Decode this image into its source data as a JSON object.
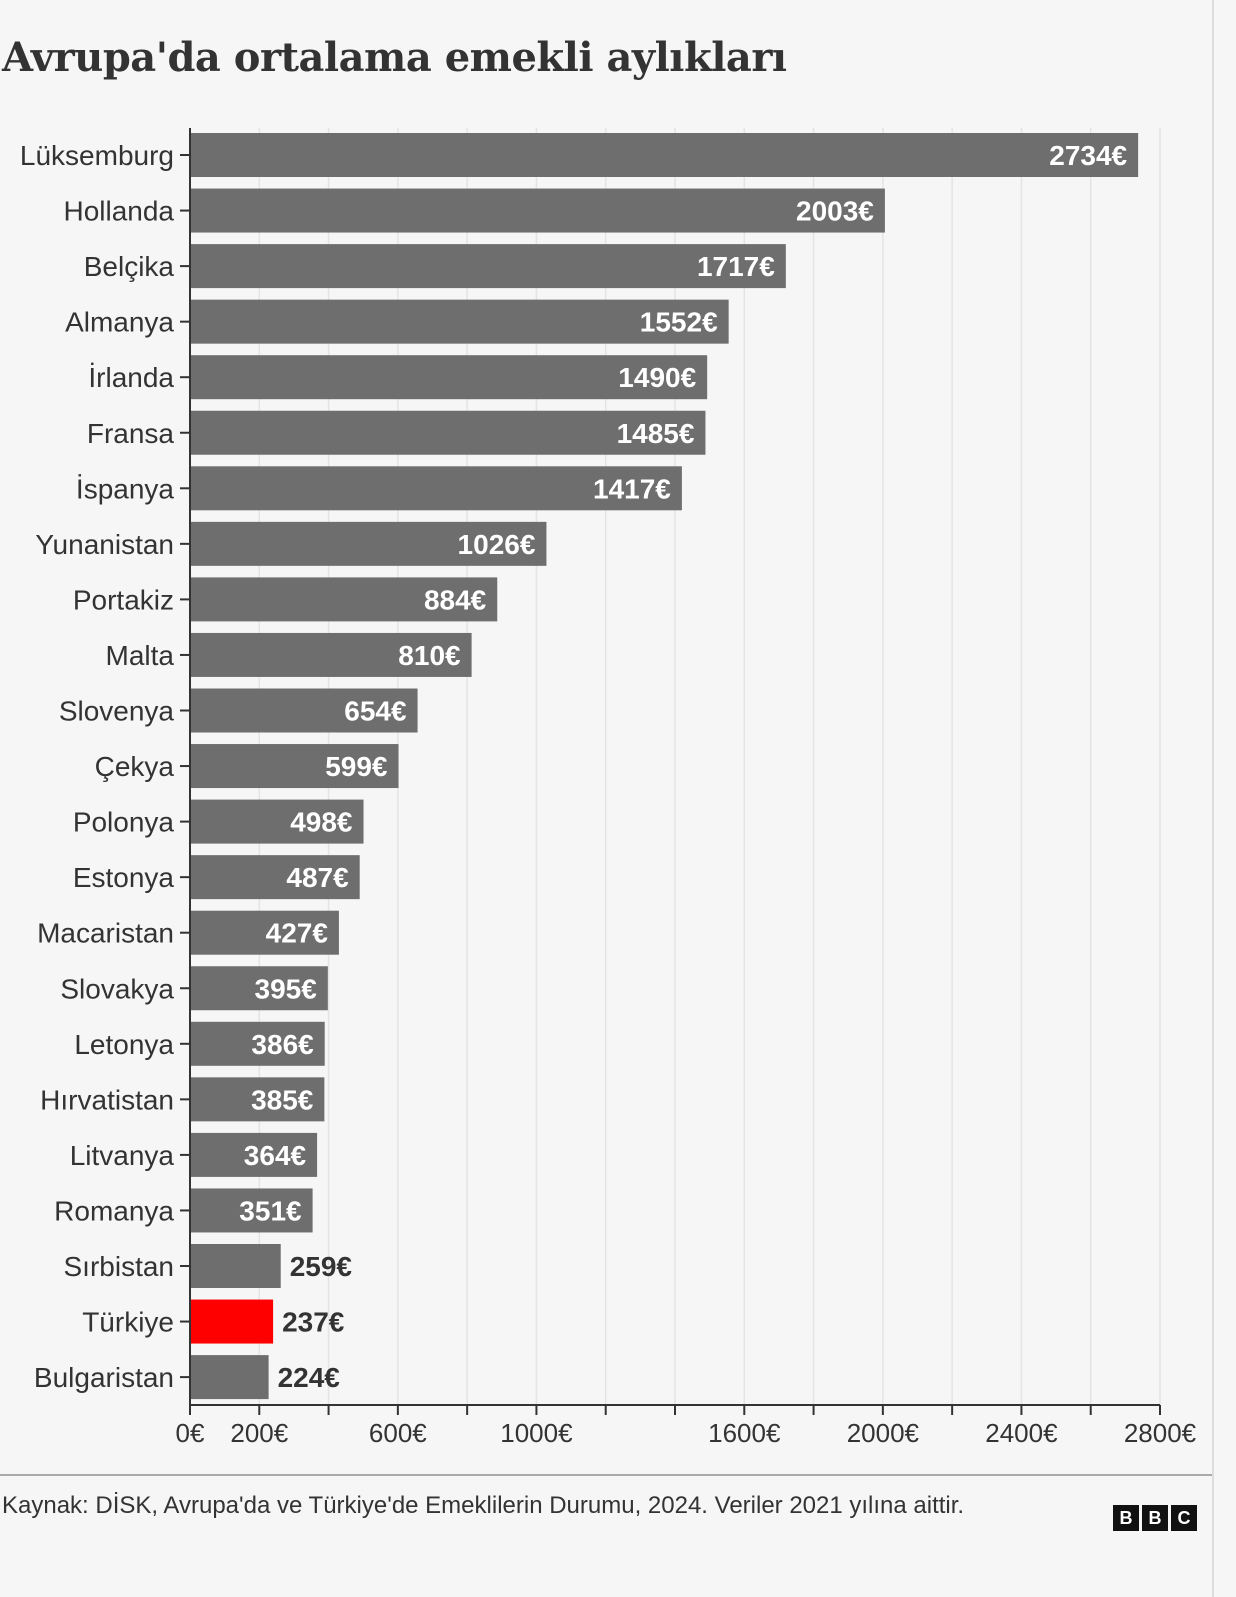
{
  "chart_data": {
    "type": "bar",
    "orientation": "horizontal",
    "title": "Avrupa'da ortalama emekli aylıkları",
    "categories": [
      "Lüksemburg",
      "Hollanda",
      "Belçika",
      "Almanya",
      "İrlanda",
      "Fransa",
      "İspanya",
      "Yunanistan",
      "Portakiz",
      "Malta",
      "Slovenya",
      "Çekya",
      "Polonya",
      "Estonya",
      "Macaristan",
      "Slovakya",
      "Letonya",
      "Hırvatistan",
      "Litvanya",
      "Romanya",
      "Sırbistan",
      "Türkiye",
      "Bulgaristan"
    ],
    "values": [
      2734,
      2003,
      1717,
      1552,
      1490,
      1485,
      1417,
      1026,
      884,
      810,
      654,
      599,
      498,
      487,
      427,
      395,
      386,
      385,
      364,
      351,
      259,
      237,
      224
    ],
    "value_labels": [
      "2734€",
      "2003€",
      "1717€",
      "1552€",
      "1490€",
      "1485€",
      "1417€",
      "1026€",
      "884€",
      "810€",
      "654€",
      "599€",
      "498€",
      "487€",
      "427€",
      "395€",
      "386€",
      "385€",
      "364€",
      "351€",
      "259€",
      "237€",
      "224€"
    ],
    "highlight": "Türkiye",
    "colors": {
      "default": "#6e6e6e",
      "highlight": "#ff0000"
    },
    "xlim": [
      0,
      2800
    ],
    "x_ticks": [
      0,
      200,
      400,
      600,
      800,
      1000,
      1200,
      1400,
      1600,
      1800,
      2000,
      2200,
      2400,
      2600,
      2800
    ],
    "x_tick_labels": [
      {
        "value": 0,
        "label": "0€"
      },
      {
        "value": 200,
        "label": "200€"
      },
      {
        "value": 600,
        "label": "600€"
      },
      {
        "value": 1000,
        "label": "1000€"
      },
      {
        "value": 1600,
        "label": "1600€"
      },
      {
        "value": 2000,
        "label": "2000€"
      },
      {
        "value": 2400,
        "label": "2400€"
      },
      {
        "value": 2800,
        "label": "2800€"
      }
    ],
    "grid": true,
    "xlabel": "",
    "ylabel": ""
  },
  "footer": {
    "source": "Kaynak: DİSK, Avrupa'da ve Türkiye'de Emeklilerin Durumu, 2024. Veriler 2021 yılına aittir.",
    "logo": [
      "B",
      "B",
      "C"
    ]
  }
}
